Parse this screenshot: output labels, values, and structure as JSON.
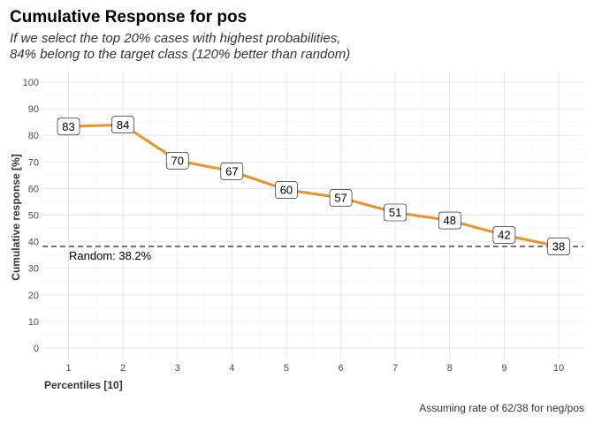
{
  "chart_data": {
    "type": "line",
    "title": "Cumulative Response for pos",
    "subtitle": [
      "If we select the top 20% cases with highest probabilities,",
      "84% belong to the target class (120% better than random)"
    ],
    "xlabel": "Percentiles [10]",
    "ylabel": "Cumulative response [%]",
    "caption": "Assuming rate of 62/38 for neg/pos",
    "x": [
      1,
      2,
      3,
      4,
      5,
      6,
      7,
      8,
      9,
      10
    ],
    "xlim": [
      1,
      10
    ],
    "ylim": [
      0,
      100
    ],
    "y_ticks": [
      0,
      10,
      20,
      30,
      40,
      50,
      60,
      70,
      80,
      90,
      100
    ],
    "grid": true,
    "series": [
      {
        "values": [
          83.3,
          84,
          70.5,
          66.5,
          59.5,
          56.5,
          51,
          48,
          42.5,
          38.2
        ],
        "labels": [
          "83",
          "84",
          "70",
          "67",
          "60",
          "57",
          "51",
          "48",
          "42",
          "38"
        ],
        "color": "#e8932e"
      }
    ],
    "reference_line": {
      "value": 38.2,
      "label": "Random: 38.2%",
      "style": "dashed",
      "color": "#222222"
    }
  }
}
